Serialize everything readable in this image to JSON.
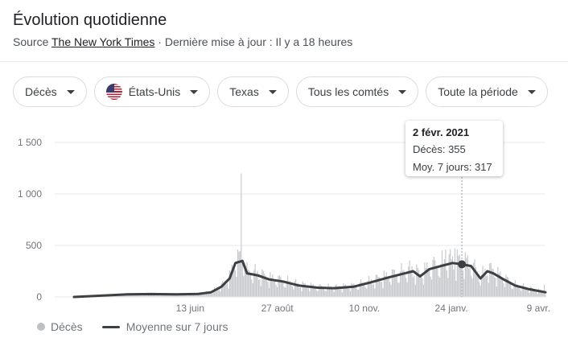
{
  "header": {
    "title": "Évolution quotidienne",
    "source_prefix": "Source",
    "source_link": "The New York Times",
    "source_suffix": "· Dernière mise à jour : Il y a 18 heures"
  },
  "filters": [
    {
      "label": "Décès"
    },
    {
      "label": "États-Unis",
      "icon": "us-flag-icon"
    },
    {
      "label": "Texas"
    },
    {
      "label": "Tous les comtés"
    },
    {
      "label": "Toute la période"
    }
  ],
  "tooltip": {
    "date": "2 févr. 2021",
    "line1": "Décès: 355",
    "line2": "Moy. 7 jours: 317"
  },
  "legend": {
    "daily": "Décès",
    "avg": "Moyenne sur 7 jours"
  },
  "colors": {
    "bars": "#c7c9cc",
    "avg_line": "#3c4043",
    "grid": "#e8eaed"
  },
  "chart_data": {
    "type": "bar",
    "x_start": "2020-03-05",
    "x_end": "2021-04-15",
    "ylim": [
      0,
      1500
    ],
    "y_ticks": [
      {
        "value": 0,
        "label": "0"
      },
      {
        "value": 500,
        "label": "500"
      },
      {
        "value": 1000,
        "label": "1 000"
      },
      {
        "value": 1500,
        "label": "1 500"
      }
    ],
    "x_ticks": [
      {
        "date": "2020-06-13",
        "label": "13 juin"
      },
      {
        "date": "2020-08-27",
        "label": "27 août"
      },
      {
        "date": "2020-11-10",
        "label": "10 nov."
      },
      {
        "date": "2021-01-24",
        "label": "24 janv."
      },
      {
        "date": "2021-04-09",
        "label": "9 avr."
      }
    ],
    "series": [
      {
        "name": "Moyenne sur 7 jours",
        "type": "line",
        "points": [
          [
            "2020-03-05",
            0
          ],
          [
            "2020-04-01",
            15
          ],
          [
            "2020-04-20",
            25
          ],
          [
            "2020-05-10",
            28
          ],
          [
            "2020-06-01",
            25
          ],
          [
            "2020-06-20",
            30
          ],
          [
            "2020-07-01",
            45
          ],
          [
            "2020-07-10",
            100
          ],
          [
            "2020-07-17",
            180
          ],
          [
            "2020-07-22",
            330
          ],
          [
            "2020-07-28",
            350
          ],
          [
            "2020-08-01",
            230
          ],
          [
            "2020-08-10",
            210
          ],
          [
            "2020-08-20",
            170
          ],
          [
            "2020-09-01",
            150
          ],
          [
            "2020-09-15",
            110
          ],
          [
            "2020-10-01",
            90
          ],
          [
            "2020-10-15",
            85
          ],
          [
            "2020-11-01",
            100
          ],
          [
            "2020-11-15",
            140
          ],
          [
            "2020-12-01",
            190
          ],
          [
            "2020-12-15",
            230
          ],
          [
            "2020-12-22",
            250
          ],
          [
            "2020-12-28",
            200
          ],
          [
            "2021-01-05",
            270
          ],
          [
            "2021-01-15",
            300
          ],
          [
            "2021-01-25",
            330
          ],
          [
            "2021-02-02",
            317
          ],
          [
            "2021-02-10",
            300
          ],
          [
            "2021-02-18",
            180
          ],
          [
            "2021-02-24",
            250
          ],
          [
            "2021-03-01",
            230
          ],
          [
            "2021-03-10",
            170
          ],
          [
            "2021-03-20",
            110
          ],
          [
            "2021-04-01",
            75
          ],
          [
            "2021-04-15",
            45
          ]
        ]
      },
      {
        "name": "Décès",
        "type": "bar",
        "highlight": {
          "date": "2021-02-02",
          "value": 355
        },
        "peaks": [
          [
            "2020-07-27",
            1200
          ],
          [
            "2020-07-30",
            330
          ],
          [
            "2020-08-08",
            320
          ],
          [
            "2021-01-19",
            460
          ],
          [
            "2021-01-27",
            470
          ],
          [
            "2021-02-02",
            355
          ],
          [
            "2021-04-14",
            120
          ]
        ]
      }
    ]
  }
}
